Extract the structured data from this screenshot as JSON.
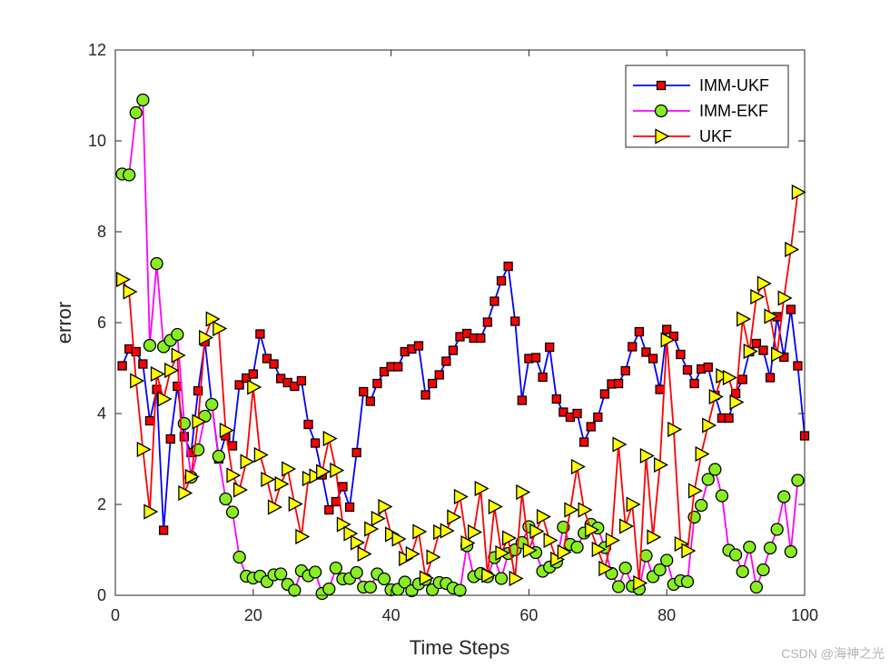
{
  "chart_data": {
    "type": "line",
    "xlabel": "Time Steps",
    "ylabel": "error",
    "xlim": [
      0,
      100
    ],
    "ylim": [
      0,
      12
    ],
    "xticks": [
      "0",
      "20",
      "40",
      "60",
      "80",
      "100"
    ],
    "yticks": [
      "0",
      "2",
      "4",
      "6",
      "8",
      "10",
      "12"
    ],
    "grid": false,
    "legend_position": "top-right",
    "series": [
      {
        "name": "IMM-UKF",
        "line_color": "#0000ff",
        "marker": "square",
        "marker_fill": "#ff0000",
        "values": [
          5.05,
          5.42,
          5.36,
          5.09,
          3.84,
          4.53,
          1.43,
          3.44,
          4.6,
          3.49,
          3.14,
          4.5,
          5.58,
          4.2,
          3.0,
          3.51,
          3.29,
          4.63,
          4.78,
          4.87,
          5.75,
          5.21,
          5.09,
          4.77,
          4.68,
          4.6,
          4.72,
          3.76,
          3.35,
          2.65,
          1.88,
          2.06,
          2.39,
          1.94,
          3.14,
          4.48,
          4.27,
          4.66,
          4.92,
          5.03,
          5.03,
          5.36,
          5.42,
          5.49,
          4.41,
          4.66,
          4.85,
          5.15,
          5.39,
          5.69,
          5.76,
          5.66,
          5.66,
          6.01,
          6.47,
          6.92,
          7.24,
          6.03,
          4.29,
          5.21,
          5.23,
          4.8,
          5.46,
          4.32,
          4.03,
          3.92,
          4.0,
          3.37,
          3.71,
          3.92,
          4.43,
          4.65,
          4.66,
          4.94,
          5.47,
          5.8,
          5.35,
          5.21,
          4.53,
          5.85,
          5.7,
          5.3,
          4.96,
          4.66,
          4.98,
          5.02,
          4.4,
          3.9,
          3.9,
          4.44,
          4.75,
          5.36,
          5.54,
          5.39,
          4.79,
          6.13,
          5.24,
          6.29,
          5.05,
          3.51
        ]
      },
      {
        "name": "IMM-EKF",
        "line_color": "#ff00ff",
        "marker": "circle",
        "marker_fill": "#88ee22",
        "values": [
          9.27,
          9.25,
          10.62,
          10.9,
          5.5,
          7.3,
          5.47,
          5.61,
          5.74,
          3.78,
          2.6,
          3.2,
          3.94,
          4.2,
          3.06,
          2.12,
          1.83,
          0.84,
          0.42,
          0.38,
          0.42,
          0.3,
          0.45,
          0.47,
          0.24,
          0.11,
          0.54,
          0.43,
          0.51,
          0.04,
          0.14,
          0.6,
          0.36,
          0.37,
          0.5,
          0.18,
          0.18,
          0.47,
          0.36,
          0.12,
          0.13,
          0.29,
          0.1,
          0.25,
          0.35,
          0.12,
          0.28,
          0.26,
          0.16,
          0.11,
          1.09,
          0.41,
          0.48,
          0.41,
          0.83,
          0.37,
          0.92,
          1.0,
          1.16,
          1.51,
          0.94,
          0.53,
          0.62,
          0.73,
          1.5,
          1.12,
          1.06,
          1.37,
          1.56,
          1.48,
          1.05,
          0.48,
          0.19,
          0.6,
          0.2,
          0.14,
          0.87,
          0.41,
          0.56,
          0.77,
          0.24,
          0.32,
          0.3,
          1.72,
          1.98,
          2.55,
          2.77,
          2.19,
          0.99,
          0.89,
          0.52,
          1.06,
          0.18,
          0.56,
          1.04,
          1.45,
          2.17,
          0.96,
          2.53
        ]
      },
      {
        "name": "UKF",
        "line_color": "#ff0000",
        "marker": "triangle-right",
        "marker_fill": "#ffff00",
        "values": [
          6.95,
          6.68,
          4.72,
          3.21,
          1.84,
          4.87,
          4.32,
          4.95,
          5.28,
          2.25,
          2.61,
          3.82,
          5.67,
          6.08,
          5.87,
          3.63,
          2.64,
          2.32,
          2.94,
          4.58,
          3.09,
          2.55,
          1.94,
          2.45,
          2.78,
          2.01,
          1.29,
          2.57,
          2.62,
          2.72,
          3.45,
          2.75,
          1.56,
          1.36,
          1.16,
          0.91,
          1.46,
          1.69,
          1.95,
          1.34,
          1.24,
          0.81,
          0.91,
          1.4,
          0.38,
          0.84,
          1.39,
          1.42,
          1.72,
          2.17,
          1.15,
          1.39,
          2.35,
          0.44,
          1.95,
          0.93,
          1.26,
          0.37,
          2.27,
          0.99,
          1.41,
          1.73,
          1.21,
          0.79,
          0.95,
          1.88,
          2.83,
          1.88,
          1.44,
          1.01,
          0.59,
          1.21,
          3.32,
          1.52,
          2.0,
          0.27,
          3.07,
          1.28,
          2.87,
          5.62,
          3.65,
          1.13,
          0.98,
          2.3,
          3.11,
          3.74,
          4.37,
          4.83,
          4.79,
          4.25,
          6.08,
          5.37,
          6.57,
          6.86,
          6.14,
          5.3,
          6.54,
          7.61,
          8.87
        ]
      }
    ]
  },
  "footer": {
    "watermark": "CSDN @海神之光"
  }
}
